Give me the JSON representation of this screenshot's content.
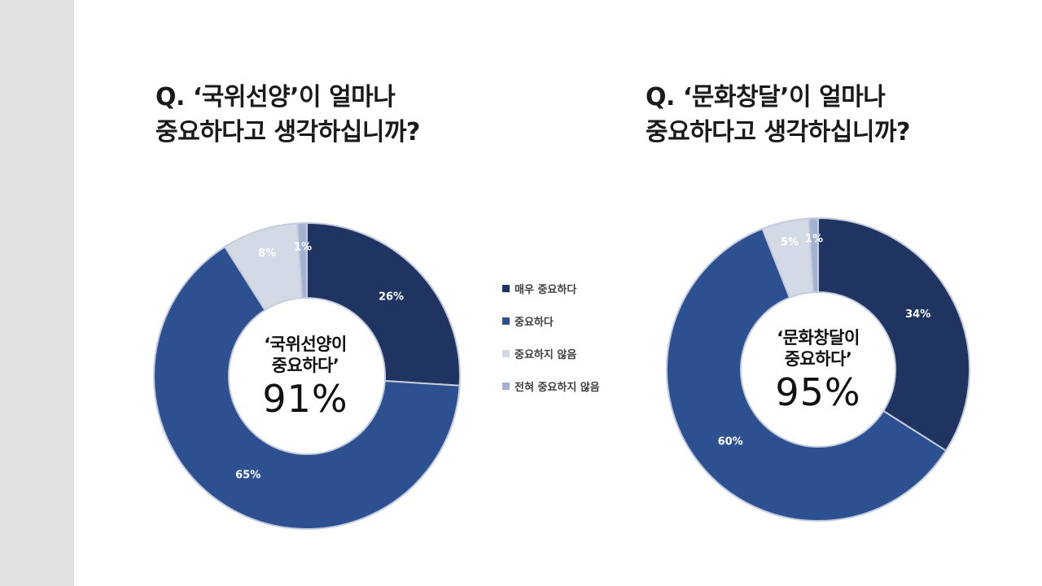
{
  "questions": {
    "left": {
      "line1": "Q. ‘국위선양’이 얼마나",
      "line2": "중요하다고 생각하십니까?"
    },
    "right": {
      "line1": "Q. ‘문화창달’이 얼마나",
      "line2": "중요하다고 생각하십니까?"
    }
  },
  "centers": {
    "left": {
      "line1": "‘국위선양이",
      "line2": "중요하다’",
      "pct": "91%"
    },
    "right": {
      "line1": "‘문화창달이",
      "line2": "중요하다’",
      "pct": "95%"
    }
  },
  "colors": {
    "very_important": "#1f3460",
    "important": "#2d5091",
    "not_important": "#d4d9e6",
    "not_at_all": "#a3b2d1",
    "label_dark_bg": "#ffffff",
    "label_light_bg": "#ffffff",
    "ring_edge": "#c5ccdd",
    "left_band": "#e0e1e3"
  },
  "legend": [
    {
      "label": "매우 중요하다",
      "color": "#1f3460"
    },
    {
      "label": "중요하다",
      "color": "#2d5091"
    },
    {
      "label": "중요하지 않음",
      "color": "#d4d9e6"
    },
    {
      "label": "전혀 중요하지 않음",
      "color": "#a3b2d1"
    }
  ],
  "chart_data": [
    {
      "type": "pie",
      "categories": [
        "매우 중요하다",
        "중요하다",
        "중요하지 않음",
        "전혀 중요하지 않음"
      ],
      "values": [
        26,
        65,
        8,
        1
      ],
      "labels": [
        "26%",
        "65%",
        "8%",
        "1%"
      ],
      "colors": [
        "#1f3460",
        "#2d5091",
        "#d4d9e6",
        "#a3b2d1"
      ],
      "legend": "right",
      "title": "Q. ‘국위선양’이 얼마나 중요하다고 생각하십니까?"
    },
    {
      "type": "pie",
      "categories": [
        "매우 중요하다",
        "중요하다",
        "중요하지 않음",
        "전혀 중요하지 않음"
      ],
      "values": [
        34,
        60,
        5,
        1
      ],
      "labels": [
        "34%",
        "60%",
        "5%",
        "1%"
      ],
      "colors": [
        "#1f3460",
        "#2d5091",
        "#d4d9e6",
        "#a3b2d1"
      ],
      "title": "Q. ‘문화창달’이 얼마나 중요하다고 생각하십니까?"
    }
  ]
}
